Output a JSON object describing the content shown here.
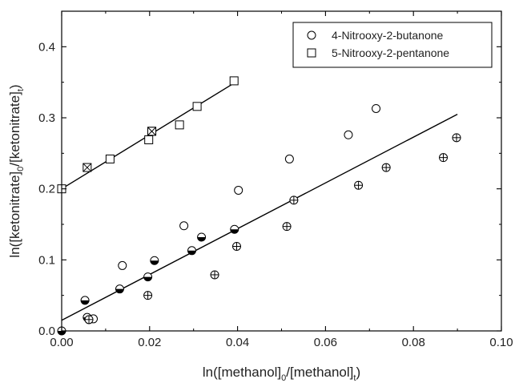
{
  "chart_data": {
    "type": "scatter",
    "xlabel_parts": [
      "ln([methanol]",
      "0",
      "/[methanol]",
      "t",
      ")"
    ],
    "ylabel_parts": [
      "ln([ketonitrate]",
      "0",
      "/[ketonitrate]",
      "t",
      ")"
    ],
    "xlim": [
      0.0,
      0.1
    ],
    "ylim": [
      0.0,
      0.45
    ],
    "xticks": [
      0.0,
      0.02,
      0.04,
      0.06,
      0.08,
      0.1
    ],
    "yticks": [
      0.0,
      0.1,
      0.2,
      0.3,
      0.4
    ],
    "xtick_labels": [
      "0.00",
      "0.02",
      "0.04",
      "0.06",
      "0.08",
      "0.10"
    ],
    "ytick_labels": [
      "0.0",
      "0.1",
      "0.2",
      "0.3",
      "0.4"
    ],
    "legend_position": "top-right",
    "series": [
      {
        "name": "4-Nitrooxy-2-butanone",
        "marker": "circle-open",
        "points": [
          [
            0.0062,
            0.016
          ],
          [
            0.0072,
            0.017
          ],
          [
            0.0138,
            0.092
          ],
          [
            0.0278,
            0.148
          ],
          [
            0.0402,
            0.198
          ],
          [
            0.0518,
            0.242
          ],
          [
            0.0652,
            0.276
          ],
          [
            0.0715,
            0.313
          ]
        ]
      },
      {
        "name": "",
        "marker": "circle-half",
        "points": [
          [
            0.0,
            0.0
          ],
          [
            0.0053,
            0.043
          ],
          [
            0.0058,
            0.019
          ],
          [
            0.0132,
            0.059
          ],
          [
            0.0196,
            0.076
          ],
          [
            0.0211,
            0.099
          ],
          [
            0.0296,
            0.113
          ],
          [
            0.0318,
            0.132
          ],
          [
            0.0393,
            0.143
          ]
        ]
      },
      {
        "name": "",
        "marker": "circle-plus",
        "points": [
          [
            0.0062,
            0.016
          ],
          [
            0.0196,
            0.05
          ],
          [
            0.0348,
            0.079
          ],
          [
            0.0398,
            0.119
          ],
          [
            0.0512,
            0.147
          ],
          [
            0.0528,
            0.184
          ],
          [
            0.0675,
            0.205
          ],
          [
            0.0738,
            0.23
          ],
          [
            0.0868,
            0.244
          ],
          [
            0.0898,
            0.272
          ]
        ]
      },
      {
        "name": "5-Nitrooxy-2-pentanone",
        "marker": "square-open",
        "points": [
          [
            0.0,
            0.2
          ],
          [
            0.011,
            0.242
          ],
          [
            0.0198,
            0.269
          ],
          [
            0.0205,
            0.281
          ],
          [
            0.0268,
            0.29
          ],
          [
            0.0308,
            0.316
          ],
          [
            0.0392,
            0.352
          ]
        ]
      },
      {
        "name": "",
        "marker": "square-x",
        "points": [
          [
            0.0058,
            0.23
          ],
          [
            0.0205,
            0.281
          ]
        ]
      }
    ],
    "fit_lines": [
      {
        "x": [
          0.0,
          0.09
        ],
        "y": [
          0.015,
          0.305
        ]
      },
      {
        "x": [
          0.0,
          0.039
        ],
        "y": [
          0.2,
          0.348
        ]
      }
    ]
  }
}
